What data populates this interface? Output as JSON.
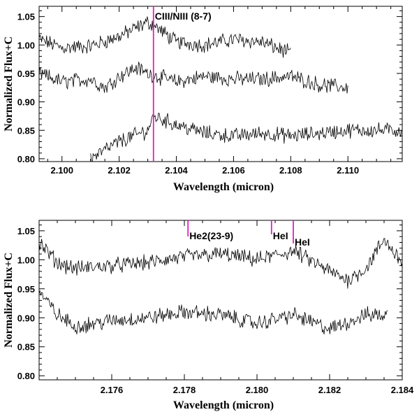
{
  "chart_data": [
    {
      "type": "line",
      "xlabel": "Wavelength (micron)",
      "ylabel": "Normalized Flux+C",
      "xlim": [
        2.0992,
        2.1119
      ],
      "ylim": [
        0.795,
        1.068
      ],
      "xticks": [
        2.1,
        2.102,
        2.104,
        2.106,
        2.108,
        2.11
      ],
      "xtick_labels": [
        "2.100",
        "2.102",
        "2.104",
        "2.106",
        "2.108",
        "2.110"
      ],
      "yticks": [
        0.8,
        0.85,
        0.9,
        0.95,
        1.0,
        1.05
      ],
      "ytick_labels": [
        "0.80",
        "0.85",
        "0.90",
        "0.95",
        "1.00",
        "1.05"
      ],
      "series": [
        {
          "x": [
            2.0992,
            2.1,
            2.101,
            2.102,
            2.1026,
            2.103,
            2.1032,
            2.104,
            2.105,
            2.106,
            2.107,
            2.108
          ],
          "y": [
            1.01,
            0.995,
            0.998,
            1.015,
            1.03,
            1.04,
            1.035,
            1.005,
            1.0,
            1.01,
            1.005,
            0.985
          ]
        },
        {
          "x": [
            2.0992,
            2.1,
            2.101,
            2.1015,
            2.102,
            2.1026,
            2.103,
            2.104,
            2.105,
            2.106,
            2.107,
            2.108,
            2.109,
            2.11
          ],
          "y": [
            0.95,
            0.935,
            0.94,
            0.925,
            0.945,
            0.96,
            0.95,
            0.935,
            0.945,
            0.94,
            0.94,
            0.945,
            0.93,
            0.925
          ]
        },
        {
          "x": [
            2.101,
            2.1015,
            2.102,
            2.103,
            2.1032,
            2.104,
            2.105,
            2.106,
            2.107,
            2.108,
            2.109,
            2.11,
            2.111,
            2.1119
          ],
          "y": [
            0.8,
            0.815,
            0.83,
            0.85,
            0.875,
            0.86,
            0.845,
            0.84,
            0.845,
            0.84,
            0.845,
            0.85,
            0.85,
            0.85
          ]
        }
      ],
      "line_markers": [
        {
          "x": 2.1032,
          "label": "CIII/NIII (8-7)"
        }
      ]
    },
    {
      "type": "line",
      "xlabel": "Wavelength (micron)",
      "ylabel": "Normalized Flux+C",
      "xlim": [
        2.174,
        2.184
      ],
      "ylim": [
        0.793,
        1.068
      ],
      "xticks": [
        2.176,
        2.178,
        2.18,
        2.182,
        2.184
      ],
      "xtick_labels": [
        "2.176",
        "2.178",
        "2.180",
        "2.182",
        "2.184"
      ],
      "yticks": [
        0.8,
        0.85,
        0.9,
        0.95,
        1.0,
        1.05
      ],
      "ytick_labels": [
        "0.80",
        "0.85",
        "0.90",
        "0.95",
        "1.00",
        "1.05"
      ],
      "series": [
        {
          "x": [
            2.174,
            2.1745,
            2.175,
            2.176,
            2.177,
            2.178,
            2.179,
            2.18,
            2.181,
            2.182,
            2.1825,
            2.183,
            2.1835,
            2.184
          ],
          "y": [
            1.03,
            0.995,
            0.985,
            0.99,
            0.995,
            1.005,
            1.01,
            1.0,
            1.015,
            0.98,
            0.965,
            0.985,
            1.035,
            0.995
          ]
        },
        {
          "x": [
            2.174,
            2.1745,
            2.175,
            2.176,
            2.177,
            2.178,
            2.179,
            2.18,
            2.181,
            2.182,
            2.183,
            2.1836
          ],
          "y": [
            0.945,
            0.905,
            0.885,
            0.895,
            0.9,
            0.91,
            0.905,
            0.89,
            0.905,
            0.88,
            0.905,
            0.905
          ]
        }
      ],
      "line_markers": [
        {
          "x": 2.1781,
          "label": "He2(23-9)"
        },
        {
          "x": 2.1804,
          "label": "HeI"
        },
        {
          "x": 2.181,
          "label": "HeI"
        }
      ]
    }
  ]
}
